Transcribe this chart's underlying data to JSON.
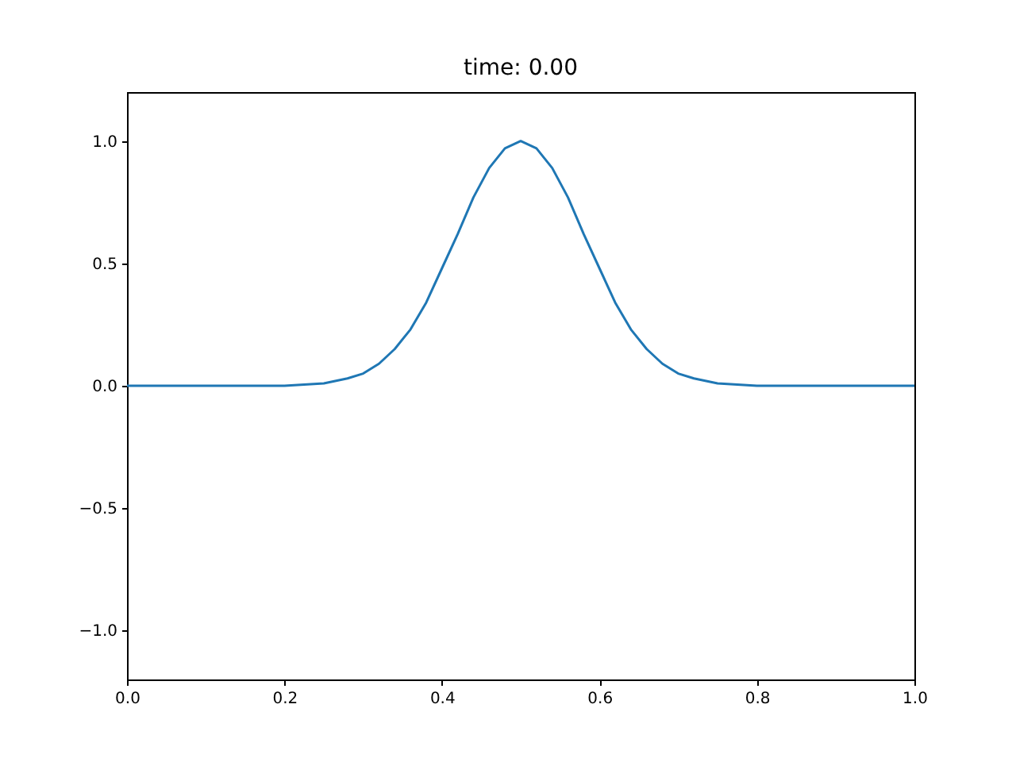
{
  "chart_data": {
    "type": "line",
    "title": "time: 0.00",
    "series": [
      {
        "color": "#1f77b4",
        "x": [
          0,
          0.2,
          0.25,
          0.28,
          0.3,
          0.32,
          0.34,
          0.36,
          0.38,
          0.4,
          0.42,
          0.44,
          0.46,
          0.48,
          0.5,
          0.52,
          0.54,
          0.56,
          0.58,
          0.6,
          0.62,
          0.64,
          0.66,
          0.68,
          0.7,
          0.72,
          0.75,
          0.8,
          1.0
        ],
        "values": [
          0,
          0,
          0.01,
          0.03,
          0.05,
          0.09,
          0.15,
          0.23,
          0.34,
          0.48,
          0.62,
          0.77,
          0.89,
          0.97,
          1.0,
          0.97,
          0.89,
          0.77,
          0.62,
          0.48,
          0.34,
          0.23,
          0.15,
          0.09,
          0.05,
          0.03,
          0.01,
          0,
          0
        ]
      }
    ],
    "xlim": [
      0,
      1
    ],
    "ylim": [
      -1.2,
      1.2
    ],
    "xticks": [
      {
        "value": 0,
        "label": "0.0"
      },
      {
        "value": 0.2,
        "label": "0.2"
      },
      {
        "value": 0.4,
        "label": "0.4"
      },
      {
        "value": 0.6,
        "label": "0.6"
      },
      {
        "value": 0.8,
        "label": "0.8"
      },
      {
        "value": 1,
        "label": "1.0"
      }
    ],
    "yticks": [
      {
        "value": -1,
        "label": "−1.0"
      },
      {
        "value": -0.5,
        "label": "−0.5"
      },
      {
        "value": 0,
        "label": "0.0"
      },
      {
        "value": 0.5,
        "label": "0.5"
      },
      {
        "value": 1,
        "label": "1.0"
      }
    ],
    "grid": false,
    "legend": false,
    "marker": "none",
    "line_style": "solid"
  }
}
